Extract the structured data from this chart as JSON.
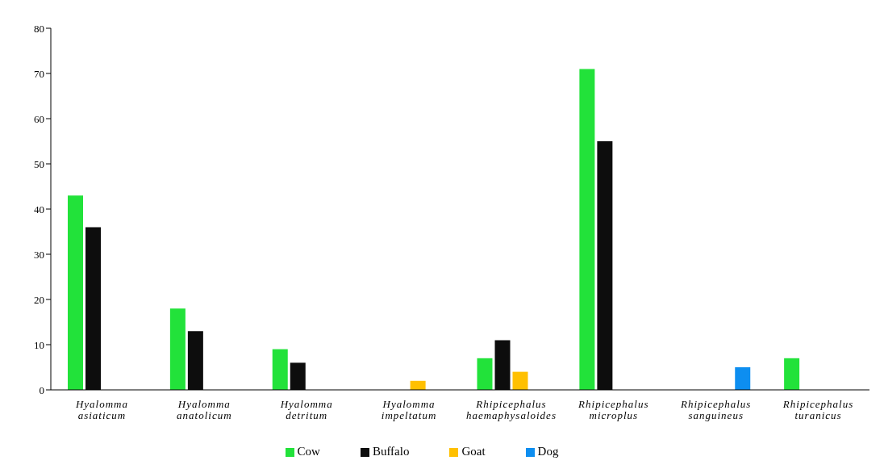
{
  "chart_data": {
    "type": "bar",
    "categories": [
      "Hyalomma asiaticum",
      "Hyalomma anatolicum",
      "Hyalomma detritum",
      "Hyalomma impeltatum",
      "Rhipicephalus haemaphysaloides",
      "Rhipicephalus microplus",
      "Rhipicephalus sanguineus",
      "Rhipicephalus turanicus"
    ],
    "series": [
      {
        "name": "Cow",
        "color": "#22e23a",
        "values": [
          43,
          18,
          9,
          null,
          7,
          71,
          null,
          7
        ]
      },
      {
        "name": "Buffalo",
        "color": "#0d0d0d",
        "values": [
          36,
          13,
          6,
          null,
          11,
          55,
          null,
          null
        ]
      },
      {
        "name": "Goat",
        "color": "#ffc000",
        "values": [
          null,
          null,
          null,
          2,
          4,
          null,
          null,
          null
        ]
      },
      {
        "name": "Dog",
        "color": "#0d8ef0",
        "values": [
          null,
          null,
          null,
          null,
          null,
          null,
          5,
          null
        ]
      }
    ],
    "ylim": [
      0,
      80
    ],
    "yticks": [
      0,
      10,
      20,
      30,
      40,
      50,
      60,
      70,
      80
    ],
    "grid": false,
    "legend": "bottom"
  }
}
